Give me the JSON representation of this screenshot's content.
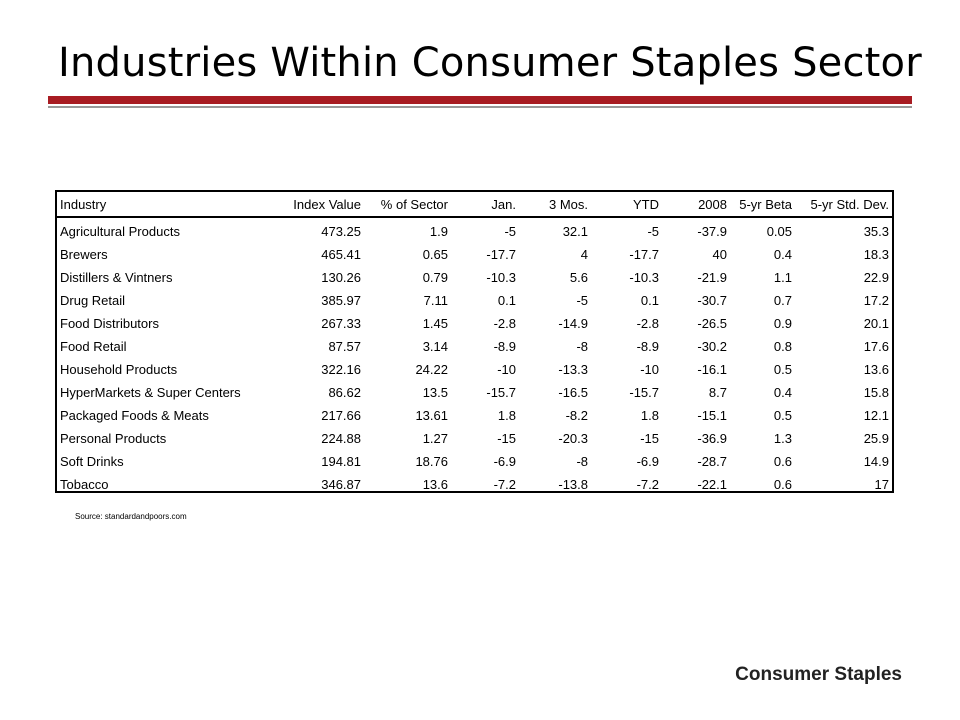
{
  "slide": {
    "title": "Industries Within Consumer Staples Sector",
    "source": "Source: standardandpoors.com",
    "footer": "Consumer Staples"
  },
  "table": {
    "headers": [
      "Industry",
      "Index Value",
      "% of Sector",
      "Jan.",
      "3 Mos.",
      "YTD",
      "2008",
      "5-yr Beta",
      "5-yr Std. Dev."
    ],
    "rows": [
      [
        "Agricultural Products",
        "473.25",
        "1.9",
        "-5",
        "32.1",
        "-5",
        "-37.9",
        "0.05",
        "35.3"
      ],
      [
        "Brewers",
        "465.41",
        "0.65",
        "-17.7",
        "4",
        "-17.7",
        "40",
        "0.4",
        "18.3"
      ],
      [
        "Distillers & Vintners",
        "130.26",
        "0.79",
        "-10.3",
        "5.6",
        "-10.3",
        "-21.9",
        "1.1",
        "22.9"
      ],
      [
        "Drug Retail",
        "385.97",
        "7.11",
        "0.1",
        "-5",
        "0.1",
        "-30.7",
        "0.7",
        "17.2"
      ],
      [
        "Food Distributors",
        "267.33",
        "1.45",
        "-2.8",
        "-14.9",
        "-2.8",
        "-26.5",
        "0.9",
        "20.1"
      ],
      [
        "Food Retail",
        "87.57",
        "3.14",
        "-8.9",
        "-8",
        "-8.9",
        "-30.2",
        "0.8",
        "17.6"
      ],
      [
        "Household Products",
        "322.16",
        "24.22",
        "-10",
        "-13.3",
        "-10",
        "-16.1",
        "0.5",
        "13.6"
      ],
      [
        "HyperMarkets & Super Centers",
        "86.62",
        "13.5",
        "-15.7",
        "-16.5",
        "-15.7",
        "8.7",
        "0.4",
        "15.8"
      ],
      [
        "Packaged Foods & Meats",
        "217.66",
        "13.61",
        "1.8",
        "-8.2",
        "1.8",
        "-15.1",
        "0.5",
        "12.1"
      ],
      [
        "Personal Products",
        "224.88",
        "1.27",
        "-15",
        "-20.3",
        "-15",
        "-36.9",
        "1.3",
        "25.9"
      ],
      [
        "Soft Drinks",
        "194.81",
        "18.76",
        "-6.9",
        "-8",
        "-6.9",
        "-28.7",
        "0.6",
        "14.9"
      ],
      [
        "Tobacco",
        "346.87",
        "13.6",
        "-7.2",
        "-13.8",
        "-7.2",
        "-22.1",
        "0.6",
        "17"
      ]
    ]
  },
  "colors": {
    "accent_rule": "#a81c22",
    "secondary_rule": "#999999"
  }
}
